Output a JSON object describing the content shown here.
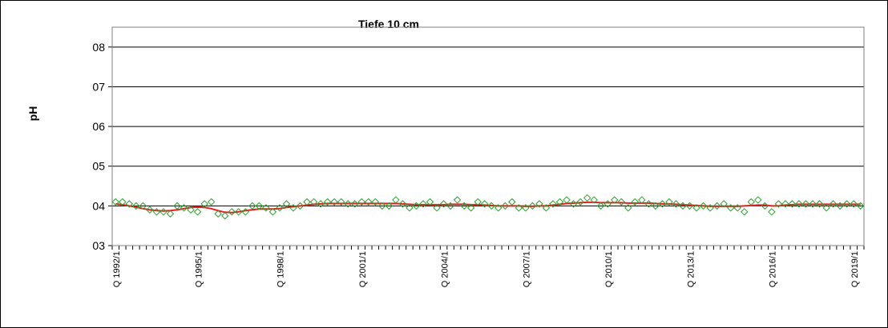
{
  "chart_data": {
    "type": "scatter",
    "title": "Tiefe  10 cm",
    "ylabel": "pH",
    "ylim": [
      3,
      8.5
    ],
    "yticks": [
      3,
      4,
      5,
      6,
      7,
      8
    ],
    "ytick_labels": [
      "03",
      "04",
      "05",
      "06",
      "07",
      "08"
    ],
    "grid": "horizontal",
    "x_start": "1992/1",
    "x_labels": [
      "Q 1992/1",
      "Q 1995/1",
      "Q 1998/1",
      "Q 2001/1",
      "Q 2004/1",
      "Q 2007/1",
      "Q 2010/1",
      "Q 2013/1",
      "Q 2016/1",
      "Q 2019/1"
    ],
    "series": [
      {
        "marker": "diamond",
        "color": "#2e9e2e",
        "values": [
          4.1,
          4.1,
          4.05,
          4.0,
          4.0,
          3.9,
          3.85,
          3.85,
          3.8,
          4.0,
          3.95,
          3.9,
          3.85,
          4.05,
          4.1,
          3.8,
          3.75,
          3.85,
          3.85,
          3.85,
          4.0,
          4.0,
          3.95,
          3.85,
          3.95,
          4.05,
          3.95,
          4.0,
          4.1,
          4.1,
          4.05,
          4.1,
          4.1,
          4.1,
          4.05,
          4.05,
          4.1,
          4.1,
          4.1,
          4.0,
          4.0,
          4.15,
          4.05,
          3.95,
          4.0,
          4.05,
          4.1,
          3.95,
          4.05,
          4.0,
          4.15,
          4.0,
          3.95,
          4.1,
          4.05,
          4.0,
          3.95,
          4.0,
          4.1,
          3.95,
          3.95,
          4.0,
          4.05,
          3.95,
          4.05,
          4.1,
          4.15,
          4.05,
          4.1,
          4.2,
          4.15,
          4.0,
          4.05,
          4.15,
          4.1,
          3.95,
          4.1,
          4.15,
          4.05,
          4.0,
          4.05,
          4.1,
          4.05,
          4.0,
          4.0,
          3.95,
          4.0,
          3.95,
          4.0,
          4.05,
          3.95,
          3.95,
          3.85,
          4.1,
          4.15,
          4.0,
          3.85,
          4.05,
          4.05,
          4.05,
          4.05,
          4.05,
          4.05,
          4.05,
          3.95,
          4.05,
          4.0,
          4.05,
          4.05,
          4.0
        ]
      },
      {
        "line": "smoothed",
        "color": "#e02020",
        "values": [
          4.05,
          4.03,
          4.0,
          3.97,
          3.93,
          3.9,
          3.88,
          3.87,
          3.88,
          3.9,
          3.93,
          3.96,
          3.97,
          3.96,
          3.93,
          3.88,
          3.84,
          3.83,
          3.85,
          3.88,
          3.9,
          3.92,
          3.92,
          3.92,
          3.93,
          3.96,
          3.98,
          4.0,
          4.02,
          4.04,
          4.05,
          4.06,
          4.06,
          4.06,
          4.06,
          4.06,
          4.06,
          4.06,
          4.06,
          4.06,
          4.06,
          4.06,
          4.05,
          4.04,
          4.03,
          4.03,
          4.03,
          4.03,
          4.03,
          4.04,
          4.04,
          4.04,
          4.03,
          4.03,
          4.02,
          4.01,
          4.0,
          4.0,
          4.0,
          4.0,
          3.99,
          3.99,
          4.0,
          4.0,
          4.02,
          4.04,
          4.06,
          4.07,
          4.08,
          4.09,
          4.09,
          4.08,
          4.08,
          4.08,
          4.08,
          4.07,
          4.07,
          4.07,
          4.07,
          4.06,
          4.05,
          4.05,
          4.04,
          4.03,
          4.02,
          4.01,
          4.0,
          3.99,
          3.99,
          3.99,
          3.99,
          3.99,
          4.0,
          4.01,
          4.02,
          4.02,
          4.0,
          4.0,
          4.02,
          4.03,
          4.04,
          4.04,
          4.04,
          4.04,
          4.04,
          4.04,
          4.04,
          4.04,
          4.04,
          4.04
        ]
      }
    ]
  }
}
